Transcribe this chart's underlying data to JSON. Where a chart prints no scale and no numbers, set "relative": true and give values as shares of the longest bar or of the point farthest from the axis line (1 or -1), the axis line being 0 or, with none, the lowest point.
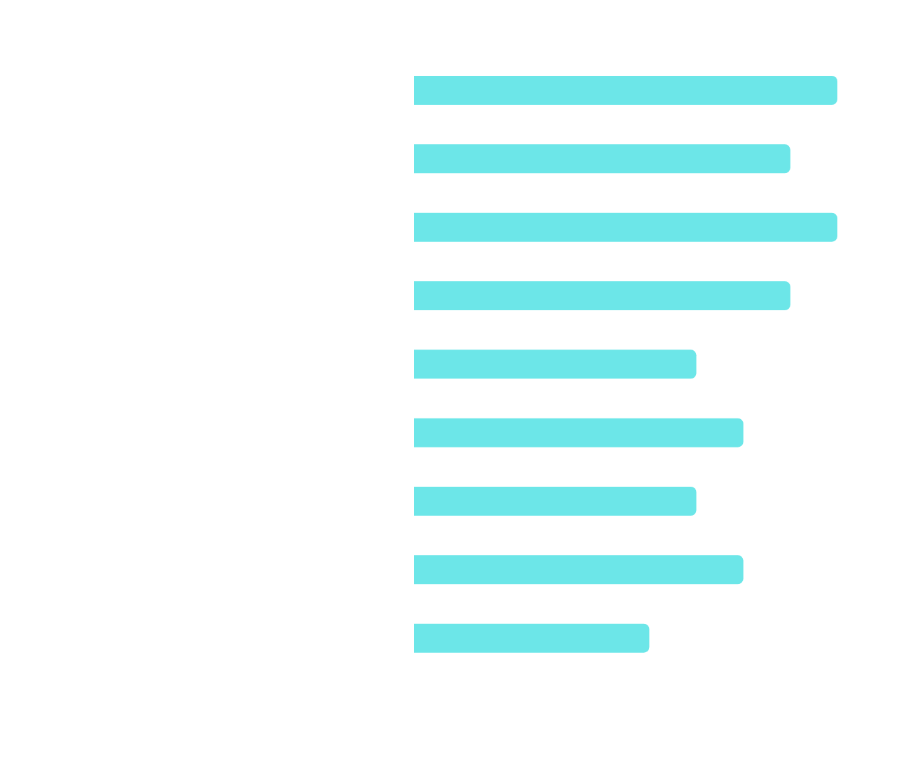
{
  "chart_data": {
    "type": "bar",
    "orientation": "horizontal",
    "relative": true,
    "categories": [
      null,
      null,
      null,
      null,
      null,
      null,
      null,
      null,
      null
    ],
    "values": [
      1,
      0.889,
      1,
      0.889,
      0.667,
      0.778,
      0.667,
      0.778,
      0.556
    ],
    "color": "#6ce6e8",
    "grid": false,
    "legend": false
  }
}
